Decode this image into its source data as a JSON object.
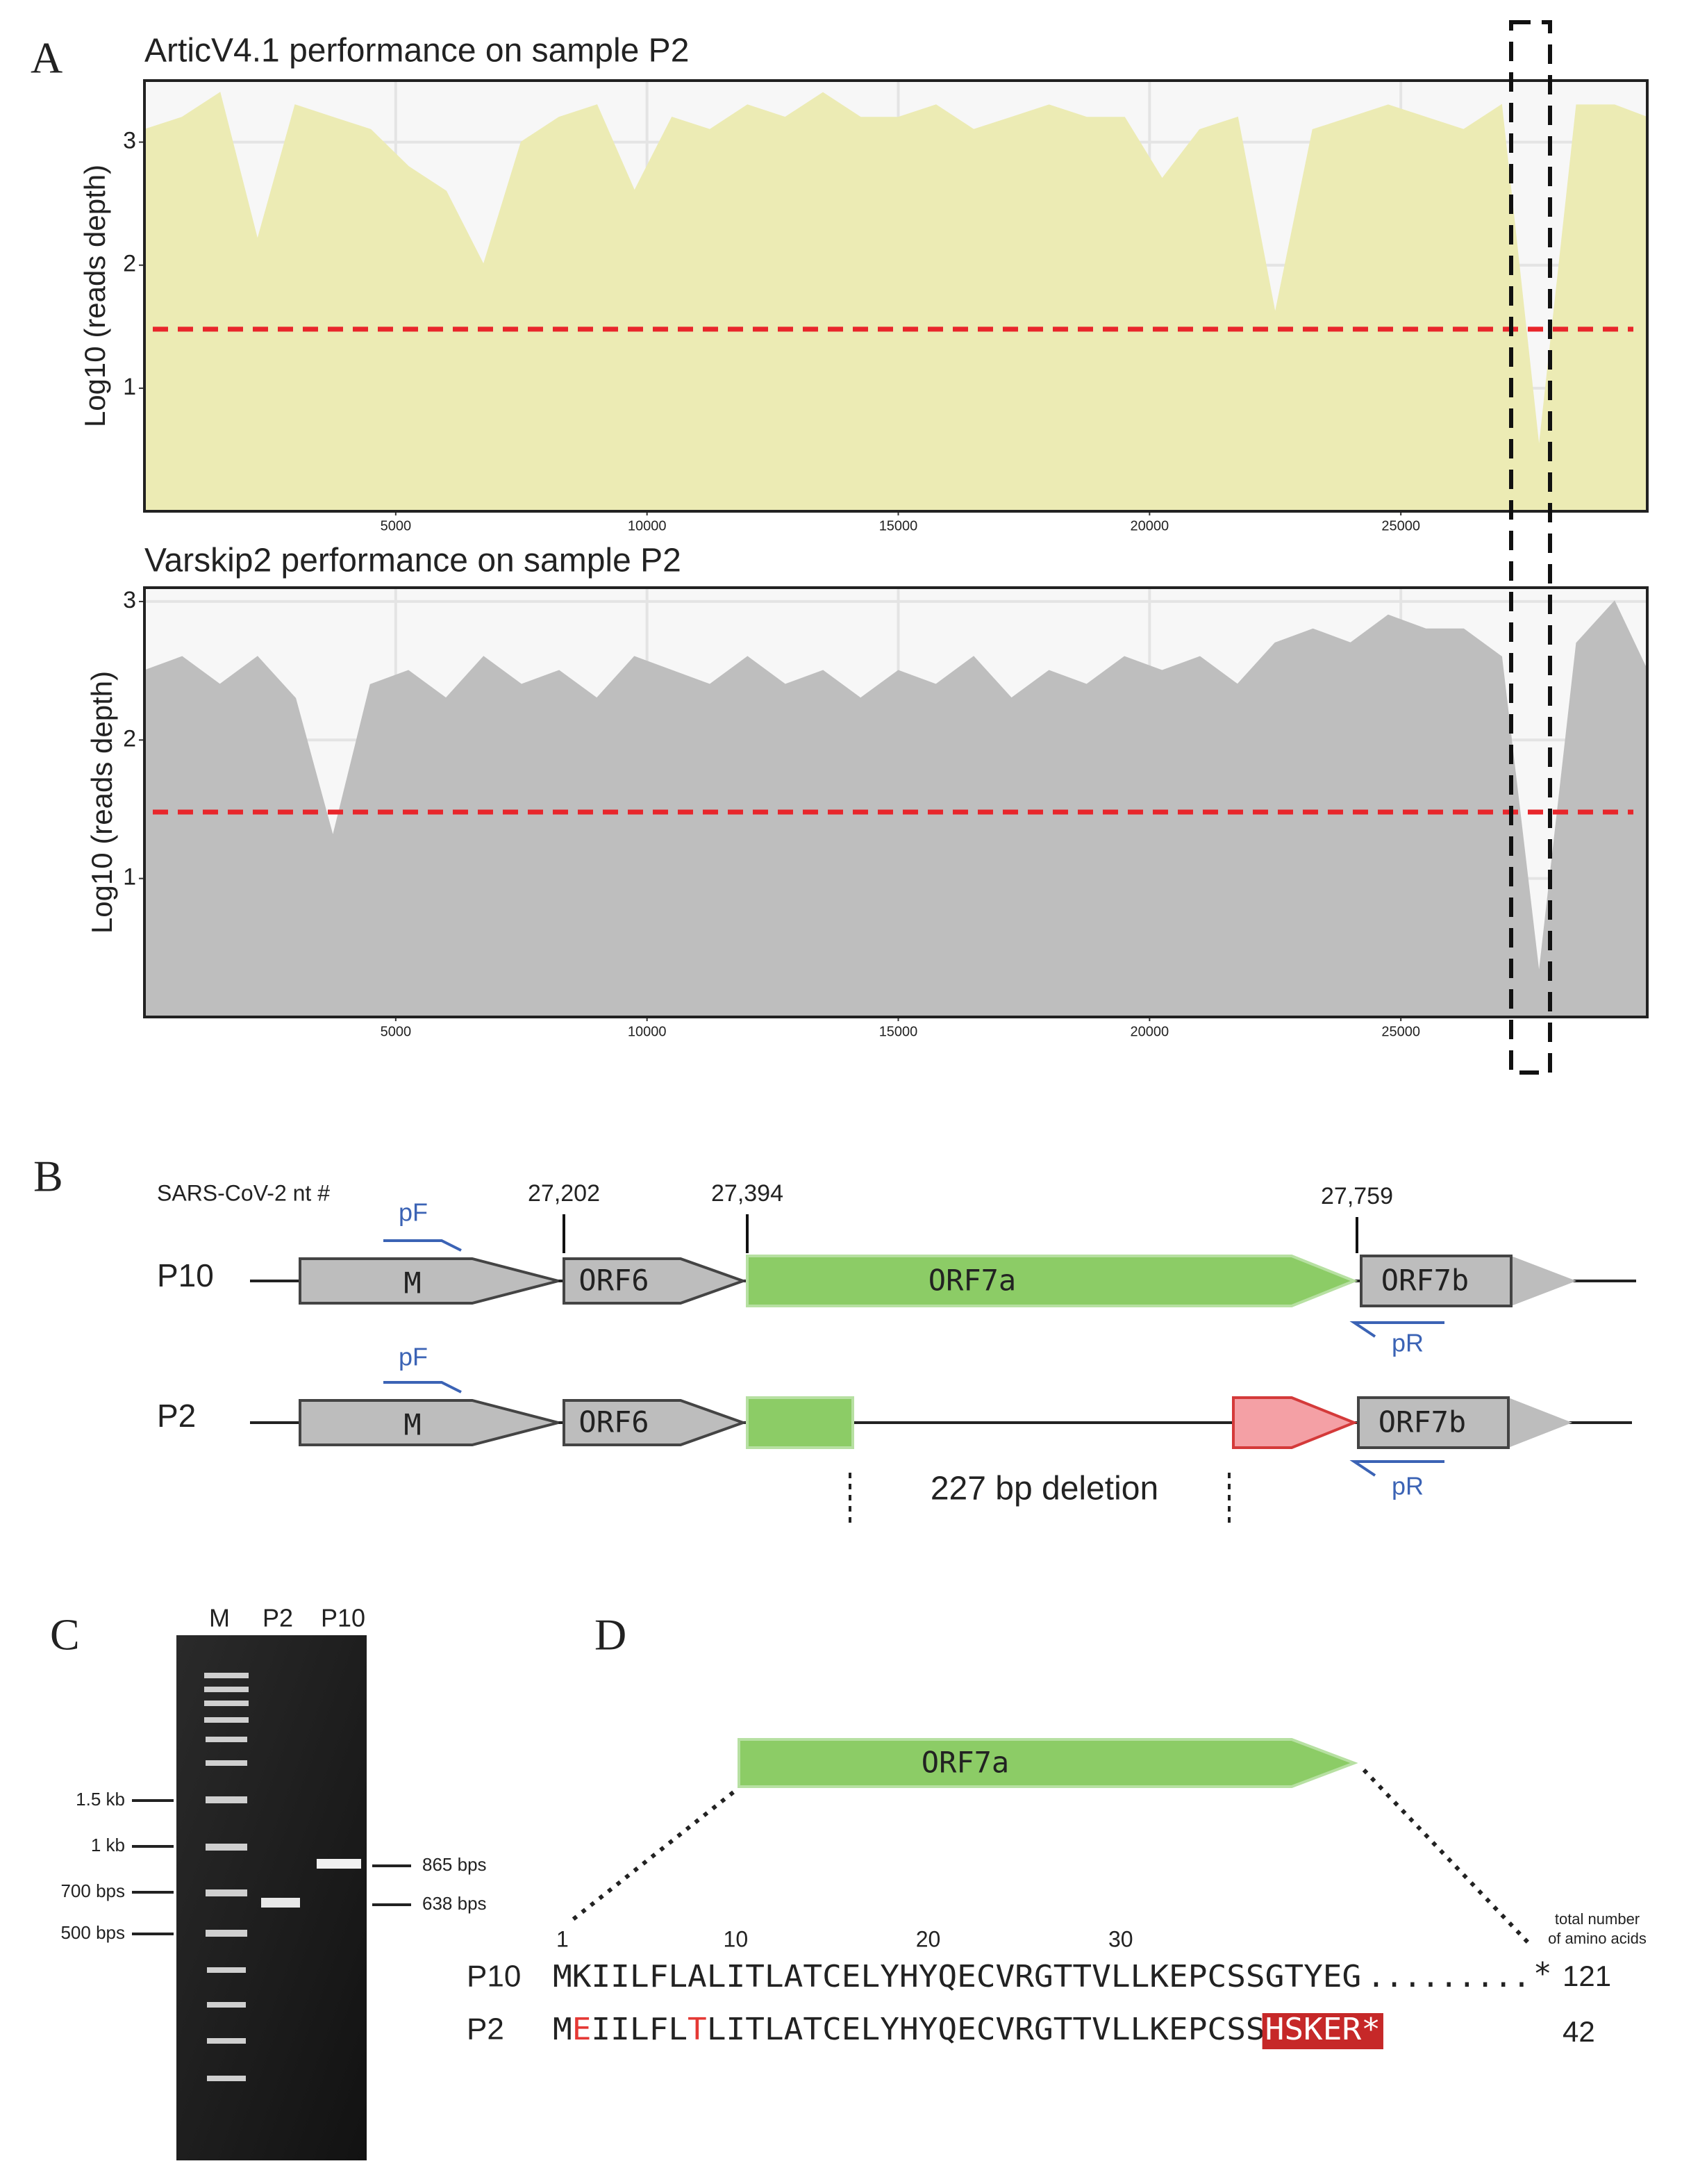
{
  "panel_labels": [
    "A",
    "B",
    "C",
    "D"
  ],
  "chart_data": [
    {
      "type": "area",
      "title": "ArticV4.1 performance on sample P2",
      "y_label": "Log10 (reads depth)",
      "color": "#ecebb4",
      "threshold": 1.48,
      "threshold_color": "#e8262b",
      "grid": true,
      "xlim": [
        0,
        29903
      ],
      "xticks": [
        5000,
        10000,
        15000,
        20000,
        25000
      ],
      "ylim": [
        0,
        3.5
      ],
      "yticks": [
        1,
        2,
        3
      ],
      "x": [
        0,
        750,
        1500,
        2250,
        3000,
        3750,
        4500,
        5250,
        6000,
        6750,
        7500,
        8250,
        9000,
        9750,
        10500,
        11250,
        12000,
        12750,
        13500,
        14250,
        15000,
        15750,
        16500,
        17250,
        18000,
        18750,
        19500,
        20250,
        21000,
        21750,
        22500,
        23250,
        24000,
        24750,
        25500,
        26250,
        27000,
        27750,
        28500,
        29250,
        29903
      ],
      "values": [
        3.1,
        3.2,
        3.4,
        2.2,
        3.3,
        3.2,
        3.1,
        2.8,
        2.6,
        2.0,
        3.0,
        3.2,
        3.3,
        2.6,
        3.2,
        3.1,
        3.3,
        3.2,
        3.4,
        3.2,
        3.2,
        3.3,
        3.1,
        3.2,
        3.3,
        3.2,
        3.2,
        2.7,
        3.1,
        3.2,
        1.6,
        3.1,
        3.2,
        3.3,
        3.2,
        3.1,
        3.3,
        0.5,
        3.3,
        3.3,
        3.2
      ]
    },
    {
      "type": "area",
      "title": "Varskip2 performance on sample P2",
      "y_label": "Log10 (reads depth)",
      "color": "#bebebe",
      "threshold": 1.48,
      "threshold_color": "#e8262b",
      "grid": true,
      "xlim": [
        0,
        29903
      ],
      "xticks": [
        5000,
        10000,
        15000,
        20000,
        25000
      ],
      "ylim": [
        0,
        3.1
      ],
      "yticks": [
        1,
        2,
        3
      ],
      "x": [
        0,
        750,
        1500,
        2250,
        3000,
        3750,
        4500,
        5250,
        6000,
        6750,
        7500,
        8250,
        9000,
        9750,
        10500,
        11250,
        12000,
        12750,
        13500,
        14250,
        15000,
        15750,
        16500,
        17250,
        18000,
        18750,
        19500,
        20250,
        21000,
        21750,
        22500,
        23250,
        24000,
        24750,
        25500,
        26250,
        27000,
        27750,
        28500,
        29250,
        29903
      ],
      "values": [
        2.5,
        2.6,
        2.4,
        2.6,
        2.3,
        1.3,
        2.4,
        2.5,
        2.3,
        2.6,
        2.4,
        2.5,
        2.3,
        2.6,
        2.5,
        2.4,
        2.6,
        2.4,
        2.5,
        2.3,
        2.5,
        2.4,
        2.6,
        2.3,
        2.5,
        2.4,
        2.6,
        2.5,
        2.6,
        2.4,
        2.7,
        2.8,
        2.7,
        2.9,
        2.8,
        2.8,
        2.6,
        0.3,
        2.7,
        3.0,
        2.5
      ]
    }
  ],
  "genome_diagram": {
    "coordinate_label": "SARS-CoV-2 nt #",
    "positions": [
      "27,202",
      "27,394",
      "27,759"
    ],
    "rows": [
      {
        "name": "P10",
        "genes": [
          "M",
          "ORF6",
          "ORF7a",
          "ORF7b"
        ],
        "primers": [
          "pF",
          "pR"
        ]
      },
      {
        "name": "P2",
        "genes": [
          "M",
          "ORF6",
          "ORF7b"
        ],
        "primers": [
          "pF",
          "pR"
        ]
      }
    ],
    "deletion_label": "227 bp deletion"
  },
  "gel": {
    "lanes": [
      "M",
      "P2",
      "P10"
    ],
    "ladder_labels": [
      "1.5 kb",
      "1 kb",
      "700 bps",
      "500 bps"
    ],
    "band_labels": [
      "865 bps",
      "638 bps"
    ]
  },
  "protein_alignment": {
    "gene": "ORF7a",
    "positions": [
      1,
      10,
      20,
      30
    ],
    "length_header": [
      "total number",
      "of amino acids"
    ],
    "rows": [
      {
        "name": "P10",
        "segments": [
          {
            "text": "MKIILFLALITLATCELYHYQECVRGTTVLLKEPCSSGTYEG",
            "color": "#222222"
          }
        ],
        "continuation": ".........",
        "stop": "*",
        "length": 121
      },
      {
        "name": "P2",
        "segments": [
          {
            "text": "M",
            "color": "#222222"
          },
          {
            "text": "E",
            "color": "#e53935"
          },
          {
            "text": "IILFL",
            "color": "#222222"
          },
          {
            "text": "T",
            "color": "#e53935"
          },
          {
            "text": "LITLATCELYHYQECVRGTTVLLKEPCSS",
            "color": "#222222"
          },
          {
            "text": "HSKER*",
            "color": "#ffffff",
            "background": "#c62828"
          }
        ],
        "length": 42
      }
    ]
  }
}
